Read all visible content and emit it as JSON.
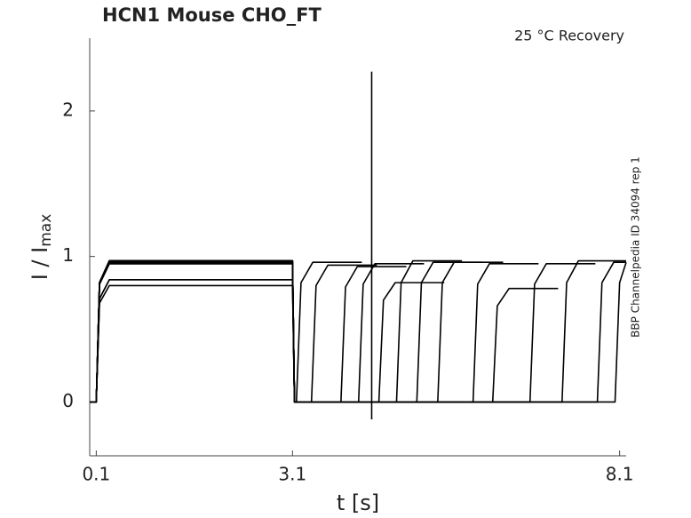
{
  "chart_data": {
    "type": "line",
    "title": "HCN1  Mouse  CHO_FT",
    "subtitle": "25 °C  Recovery",
    "side_note": "BBP Channelpedia ID 34094 rep 1",
    "xlabel": "t [s]",
    "ylabel": {
      "text": "I / I",
      "sub": "max"
    },
    "xlim": [
      0,
      8.2
    ],
    "ylim": [
      -0.37,
      2.5
    ],
    "xticks": [
      0.1,
      3.1,
      8.1
    ],
    "yticks": [
      0,
      1,
      2
    ],
    "grid": false,
    "series": [
      {
        "color": "#000000",
        "x": [
          0,
          0.1,
          0.15,
          0.3,
          3.1,
          3.13,
          3.16,
          3.23,
          3.41,
          4.16
        ],
        "values": [
          0,
          0,
          0.82,
          0.97,
          0.97,
          0,
          0,
          0.82,
          0.96,
          0.96
        ]
      },
      {
        "color": "#000000",
        "x": [
          0,
          0.1,
          0.15,
          0.3,
          3.1,
          3.13,
          3.39,
          3.46,
          3.64,
          4.39
        ],
        "values": [
          0,
          0,
          0.81,
          0.95,
          0.95,
          0,
          0,
          0.8,
          0.94,
          0.94
        ]
      },
      {
        "color": "#000000",
        "x": [
          0,
          0.1,
          0.15,
          0.3,
          3.1,
          3.13,
          3.84,
          3.91,
          4.09,
          4.84
        ],
        "values": [
          0,
          0,
          0.71,
          0.84,
          0.84,
          0,
          0,
          0.79,
          0.93,
          0.93
        ]
      },
      {
        "color": "#000000",
        "x": [
          0,
          0.1,
          0.15,
          0.3,
          3.1,
          3.13,
          4.11,
          4.18,
          4.36,
          5.11
        ],
        "values": [
          0,
          0,
          0.68,
          0.8,
          0.8,
          0,
          0,
          0.81,
          0.95,
          0.95
        ]
      },
      {
        "color": "#000000",
        "x": [
          0,
          0.1,
          0.15,
          0.3,
          3.1,
          3.13,
          4.42,
          4.49,
          4.67,
          5.42
        ],
        "values": [
          0,
          0,
          0.82,
          0.96,
          0.96,
          0,
          0,
          0.7,
          0.82,
          0.82
        ]
      },
      {
        "color": "#000000",
        "x": [
          0,
          0.1,
          0.15,
          0.3,
          3.1,
          3.13,
          4.69,
          4.76,
          4.94,
          5.69
        ],
        "values": [
          0,
          0,
          0.82,
          0.97,
          0.97,
          0,
          0,
          0.82,
          0.97,
          0.97
        ]
      },
      {
        "color": "#000000",
        "x": [
          0,
          0.1,
          0.15,
          0.3,
          3.1,
          3.13,
          5.0,
          5.07,
          5.25,
          6.0
        ],
        "values": [
          0,
          0,
          0.81,
          0.95,
          0.95,
          0,
          0,
          0.82,
          0.96,
          0.96
        ]
      },
      {
        "color": "#000000",
        "x": [
          0,
          0.1,
          0.15,
          0.3,
          3.1,
          3.13,
          5.32,
          5.39,
          5.57,
          6.32
        ],
        "values": [
          0,
          0,
          0.82,
          0.97,
          0.97,
          0,
          0,
          0.82,
          0.96,
          0.96
        ]
      },
      {
        "color": "#000000",
        "x": [
          0,
          0.1,
          0.15,
          0.3,
          3.1,
          3.13,
          5.86,
          5.93,
          6.11,
          6.86
        ],
        "values": [
          0,
          0,
          0.82,
          0.96,
          0.96,
          0,
          0,
          0.81,
          0.95,
          0.95
        ]
      },
      {
        "color": "#000000",
        "x": [
          0,
          0.1,
          0.15,
          0.3,
          3.1,
          3.13,
          6.16,
          6.23,
          6.41,
          7.16
        ],
        "values": [
          0,
          0,
          0.71,
          0.84,
          0.84,
          0,
          0,
          0.66,
          0.78,
          0.78
        ]
      },
      {
        "color": "#000000",
        "x": [
          0,
          0.1,
          0.15,
          0.3,
          3.1,
          3.13,
          6.73,
          6.8,
          6.98,
          7.73
        ],
        "values": [
          0,
          0,
          0.81,
          0.95,
          0.95,
          0,
          0,
          0.81,
          0.95,
          0.95
        ]
      },
      {
        "color": "#000000",
        "x": [
          0,
          0.1,
          0.15,
          0.3,
          3.1,
          3.13,
          7.22,
          7.29,
          7.47,
          8.2
        ],
        "values": [
          0,
          0,
          0.82,
          0.97,
          0.97,
          0,
          0,
          0.82,
          0.97,
          0.97
        ]
      },
      {
        "color": "#000000",
        "x": [
          0,
          0.1,
          0.15,
          0.3,
          3.1,
          3.13,
          7.76,
          7.83,
          8.01,
          8.2
        ],
        "values": [
          0,
          0,
          0.82,
          0.97,
          0.97,
          0,
          0,
          0.82,
          0.96,
          0.96
        ]
      },
      {
        "color": "#000000",
        "x": [
          0,
          0.1,
          0.15,
          0.3,
          3.1,
          3.13,
          8.03,
          8.1,
          8.2
        ],
        "values": [
          0,
          0,
          0.82,
          0.96,
          0.96,
          0,
          0,
          0.82,
          0.96
        ]
      },
      {
        "color": "#000000",
        "x": [
          4.31,
          4.31
        ],
        "values": [
          -0.12,
          2.27
        ]
      }
    ]
  }
}
